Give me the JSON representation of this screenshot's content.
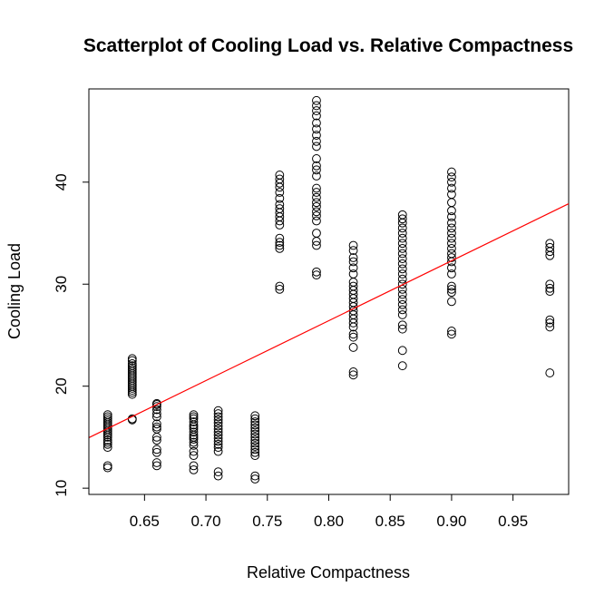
{
  "chart_data": {
    "type": "scatter",
    "title": "Scatterplot of Cooling Load vs. Relative Compactness",
    "xlabel": "Relative Compactness",
    "ylabel": "Cooling Load",
    "xlim": [
      0.6047,
      0.9953
    ],
    "ylim": [
      9.39,
      49.14
    ],
    "xticks": [
      0.65,
      0.7,
      0.75,
      0.8,
      0.85,
      0.9,
      0.95
    ],
    "xtick_labels": [
      "0.65",
      "0.70",
      "0.75",
      "0.80",
      "0.85",
      "0.90",
      "0.95"
    ],
    "yticks": [
      10,
      20,
      30,
      40
    ],
    "ytick_labels": [
      "10",
      "20",
      "30",
      "40"
    ],
    "grid": false,
    "marker": "open-circle",
    "fit_line": {
      "color": "#ff0000",
      "slope": 58.7,
      "intercept": -20.54
    },
    "points_by_x": [
      {
        "x": 0.62,
        "y": [
          14.0,
          14.3,
          14.5,
          14.7,
          15.0,
          15.2,
          15.4,
          15.6,
          15.8,
          16.0,
          16.2,
          16.4,
          16.6,
          16.8,
          17.0,
          17.2,
          12.0,
          12.2
        ]
      },
      {
        "x": 0.64,
        "y": [
          19.2,
          19.4,
          19.6,
          19.8,
          20.0,
          20.2,
          20.4,
          20.6,
          20.8,
          21.0,
          21.2,
          21.4,
          21.6,
          21.8,
          22.0,
          22.2,
          22.5,
          22.7,
          16.7,
          16.8
        ]
      },
      {
        "x": 0.66,
        "y": [
          12.2,
          12.5,
          13.5,
          13.8,
          14.7,
          15.0,
          15.8,
          16.0,
          16.3,
          17.0,
          17.3,
          17.7,
          18.0,
          18.2,
          18.3
        ]
      },
      {
        "x": 0.69,
        "y": [
          11.8,
          12.2,
          13.2,
          13.6,
          14.2,
          14.5,
          14.8,
          15.0,
          15.2,
          15.5,
          15.8,
          16.0,
          16.2,
          16.5,
          16.8,
          17.0,
          17.2
        ]
      },
      {
        "x": 0.71,
        "y": [
          11.2,
          11.6,
          13.6,
          14.0,
          14.3,
          14.6,
          14.9,
          15.2,
          15.5,
          15.8,
          16.1,
          16.4,
          16.7,
          17.0,
          17.3,
          17.6
        ]
      },
      {
        "x": 0.74,
        "y": [
          10.9,
          11.2,
          13.2,
          13.5,
          13.8,
          14.1,
          14.4,
          14.7,
          15.0,
          15.3,
          15.6,
          15.9,
          16.2,
          16.5,
          16.8,
          17.1
        ]
      },
      {
        "x": 0.76,
        "y": [
          29.5,
          29.8,
          33.5,
          33.8,
          34.1,
          34.5,
          35.8,
          36.2,
          36.6,
          37.0,
          37.4,
          37.8,
          38.4,
          39.0,
          39.5,
          39.9,
          40.3,
          40.7
        ]
      },
      {
        "x": 0.79,
        "y": [
          30.9,
          31.2,
          33.8,
          34.2,
          35.0,
          36.2,
          36.7,
          37.1,
          37.6,
          38.0,
          38.5,
          39.0,
          39.4,
          40.6,
          41.2,
          41.6,
          42.3,
          43.5,
          44.0,
          44.6,
          45.2,
          45.8,
          46.5,
          47.0,
          47.5,
          48.0
        ]
      },
      {
        "x": 0.82,
        "y": [
          21.1,
          21.4,
          23.8,
          24.8,
          25.1,
          25.8,
          26.2,
          26.6,
          27.0,
          27.4,
          27.8,
          28.2,
          28.6,
          29.0,
          29.4,
          29.8,
          30.2,
          31.0,
          31.6,
          32.2,
          32.6,
          33.3,
          33.8
        ]
      },
      {
        "x": 0.86,
        "y": [
          22.0,
          23.5,
          25.6,
          26.0,
          27.0,
          27.5,
          28.0,
          28.5,
          29.0,
          29.5,
          30.0,
          30.5,
          31.0,
          31.5,
          32.0,
          32.5,
          33.0,
          33.5,
          34.0,
          34.5,
          35.0,
          35.5,
          36.0,
          36.4,
          36.8
        ]
      },
      {
        "x": 0.9,
        "y": [
          25.1,
          25.4,
          28.3,
          29.2,
          29.5,
          29.8,
          31.0,
          31.6,
          32.2,
          32.6,
          33.0,
          33.5,
          34.0,
          34.5,
          35.0,
          35.5,
          36.0,
          36.6,
          37.2,
          38.0,
          38.8,
          39.4,
          40.0,
          40.5,
          41.0
        ]
      },
      {
        "x": 0.98,
        "y": [
          21.3,
          25.8,
          26.2,
          26.5,
          29.3,
          29.6,
          30.0,
          32.8,
          33.2,
          33.6,
          34.0
        ]
      }
    ]
  }
}
